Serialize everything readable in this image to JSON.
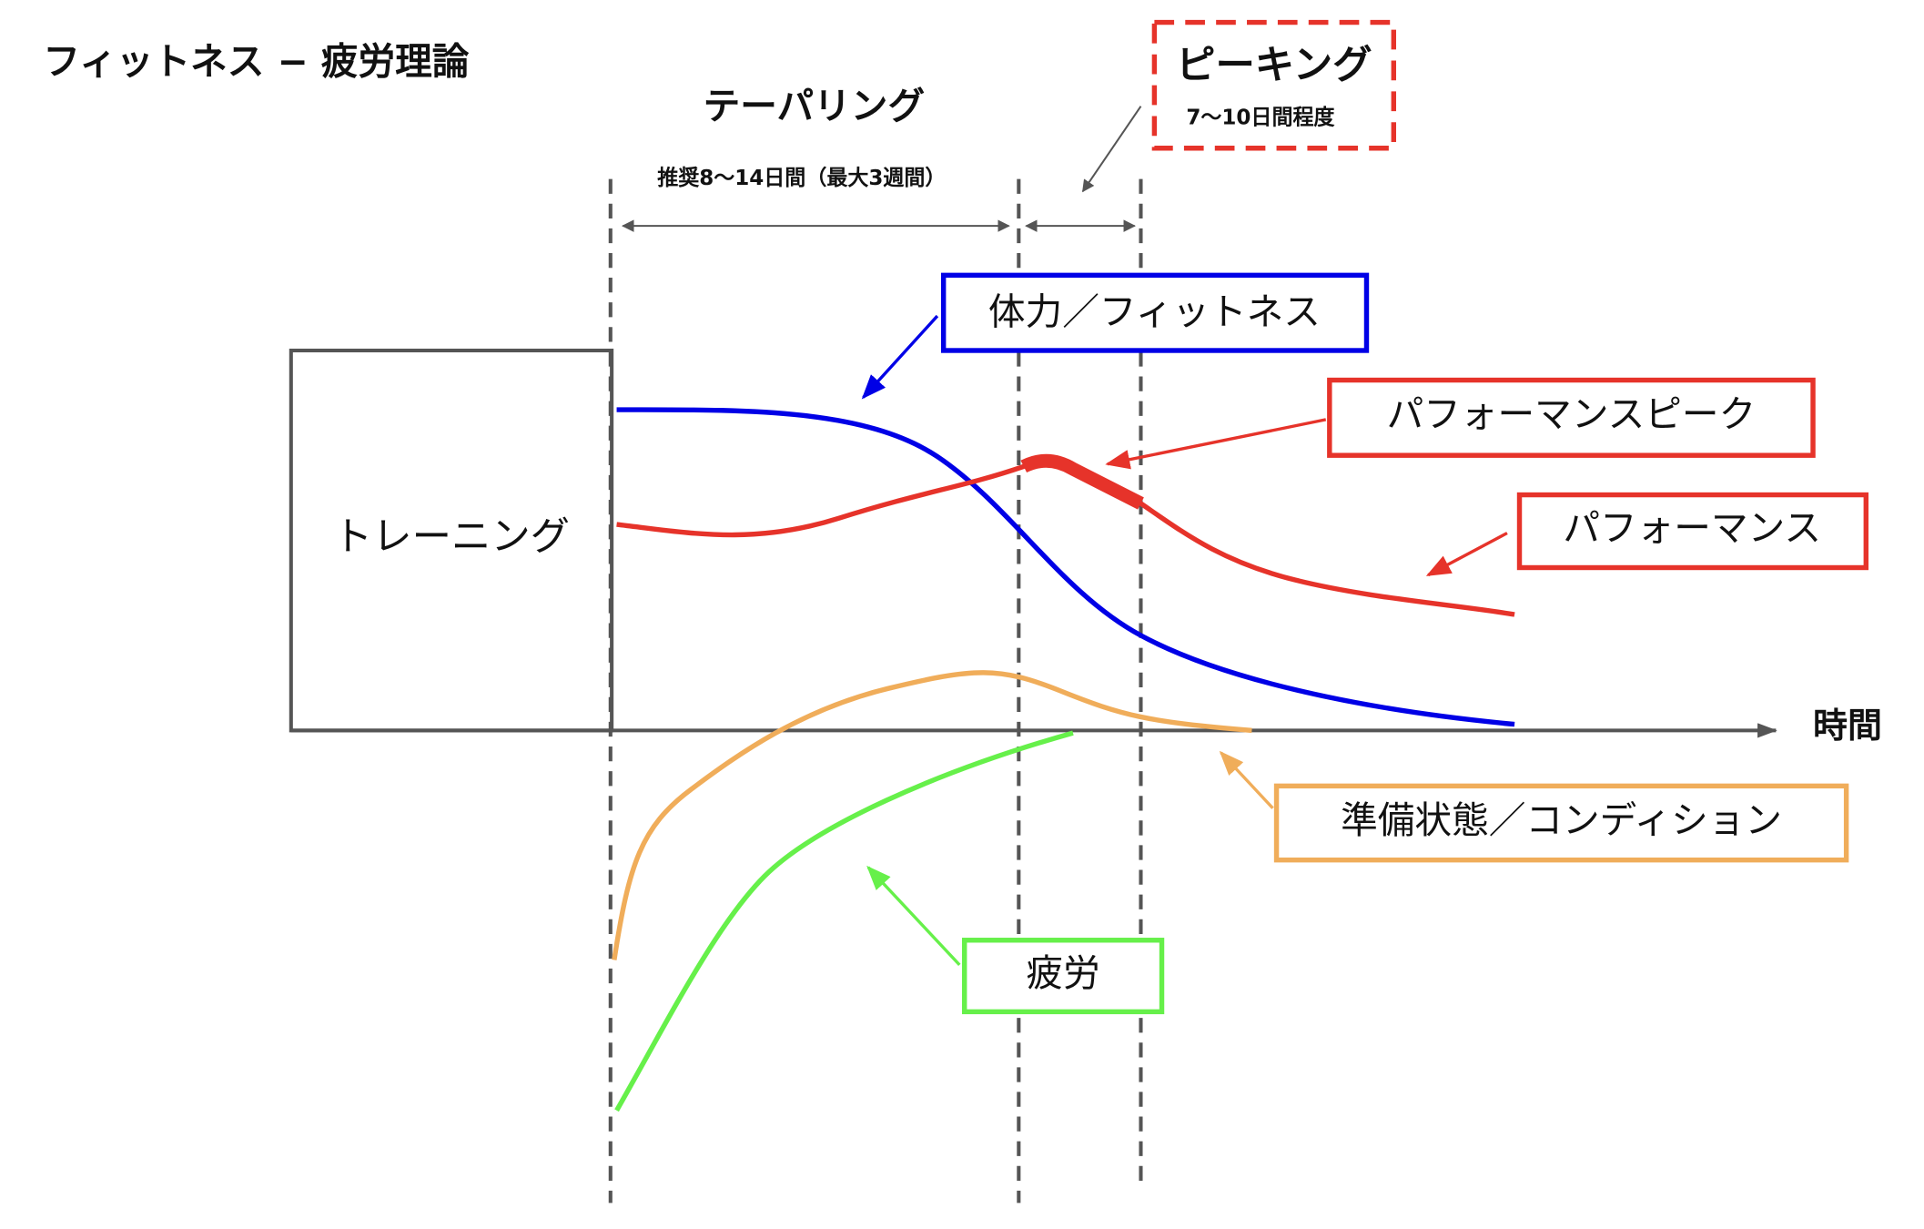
{
  "title": "フィットネス − 疲労理論",
  "tapering": {
    "label": "テーパリング",
    "duration": "推奨8〜14日間（最大3週間）"
  },
  "peaking": {
    "label": "ピーキング",
    "duration": "7〜10日間程度"
  },
  "training": "トレーニング",
  "axis_label": "時間",
  "callouts": {
    "fitness": "体力／フィットネス",
    "performance_peak": "パフォーマンスピーク",
    "performance": "パフォーマンス",
    "readiness": "準備状態／コンディション",
    "fatigue": "疲労"
  }
}
